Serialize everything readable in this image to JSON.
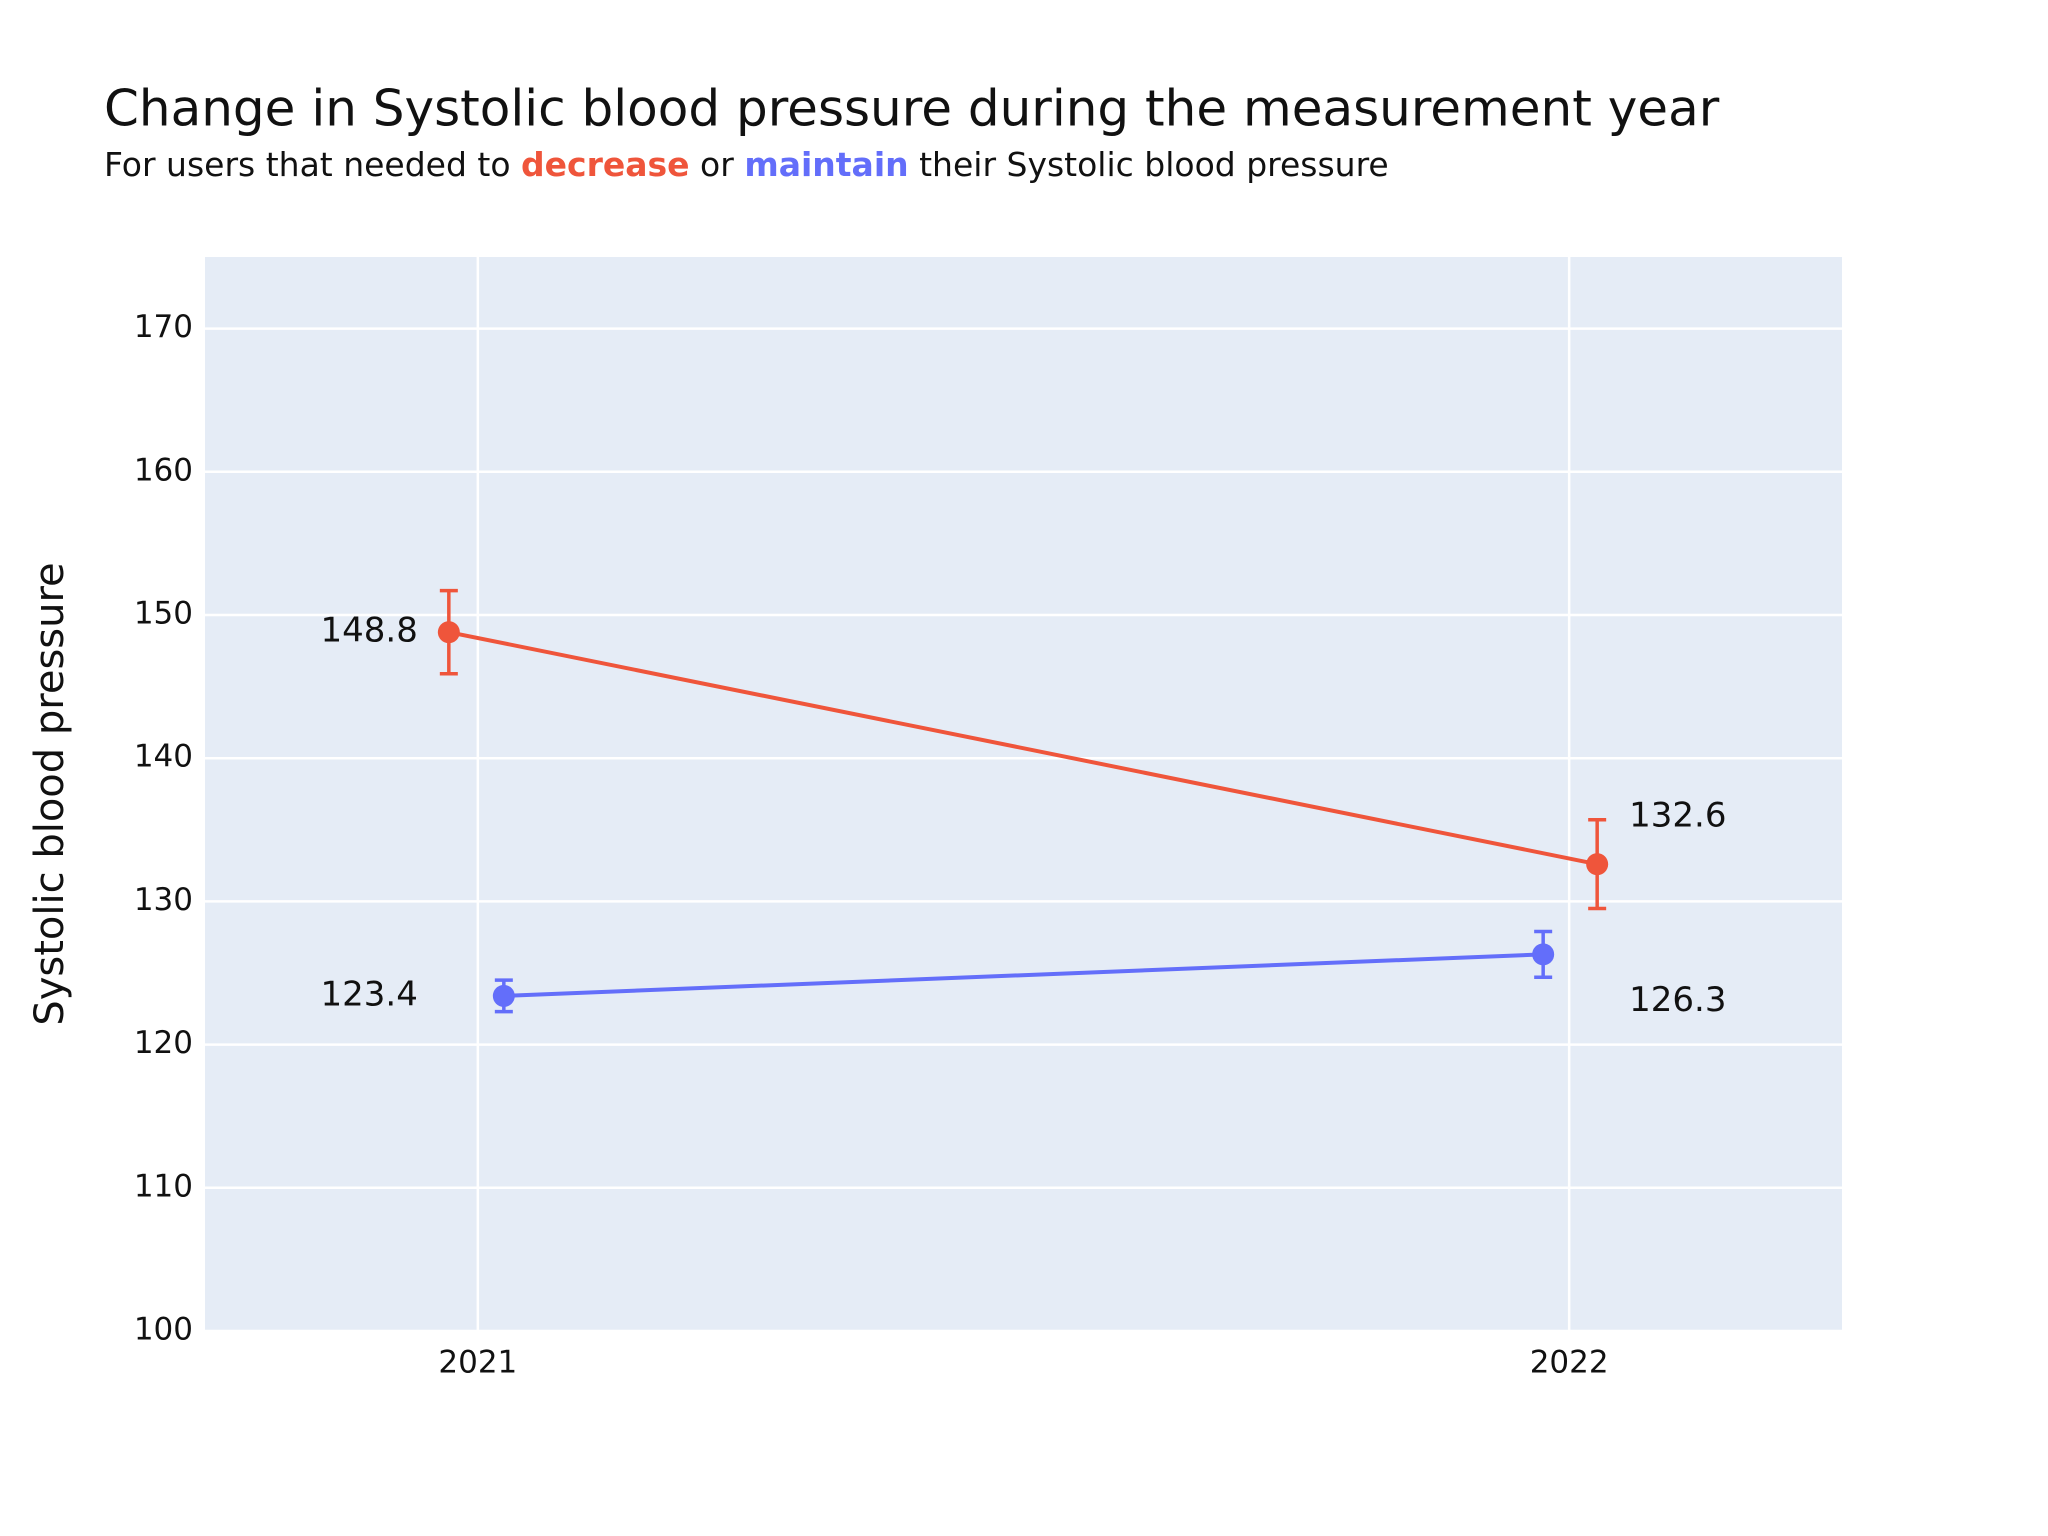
{
  "chart_data": {
    "type": "line",
    "title": "Change in Systolic blood pressure during the measurement year",
    "subtitle": [
      {
        "text": "For users that needed to "
      },
      {
        "text": "decrease",
        "color": "#ef553b",
        "bold": true
      },
      {
        "text": " or "
      },
      {
        "text": "maintain",
        "color": "#636efa",
        "bold": true
      },
      {
        "text": " their Systolic blood pressure"
      }
    ],
    "y_label": "Systolic blood pressure",
    "x": [
      2021,
      2022
    ],
    "series": [
      {
        "color": "#ef553b",
        "values": [
          148.8,
          132.6
        ],
        "errors": [
          2.9,
          3.1
        ]
      },
      {
        "color": "#636efa",
        "values": [
          123.4,
          126.3
        ],
        "errors": [
          1.1,
          1.6
        ]
      }
    ],
    "xlim": [
      2020.75,
      2022.25
    ],
    "xticks": [
      2021,
      2022
    ],
    "ylim": [
      100,
      175
    ],
    "yticks": [
      100,
      110,
      120,
      130,
      140,
      150,
      160,
      170
    ],
    "grid": true,
    "background": "#e5ecf6"
  }
}
